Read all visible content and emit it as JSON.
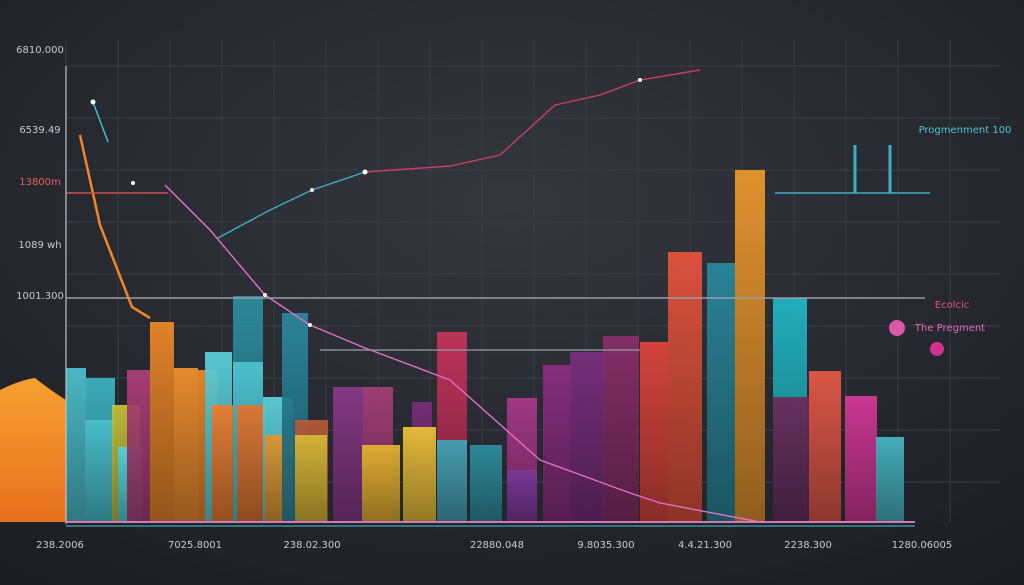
{
  "y_axis_labels": [
    "6810.000",
    "6539.49",
    "13800m",
    "1089 wh",
    "1001.300"
  ],
  "x_axis_labels": [
    "238.2006",
    "7025.8001",
    "238.02.300",
    "22880.048",
    "9.8035.300",
    "4.4.21.300",
    "2238.300",
    "1280.06005"
  ],
  "legend": [
    "Progmenment 100",
    "Ecolcic",
    "The Pregment"
  ]
}
